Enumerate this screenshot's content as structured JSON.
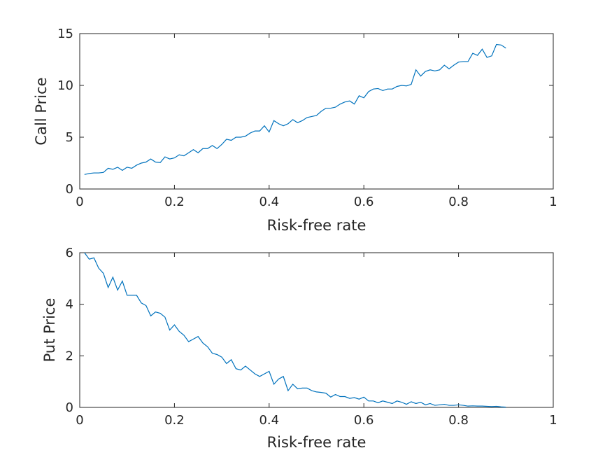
{
  "chart_data": [
    {
      "type": "line",
      "xlabel": "Risk-free rate",
      "ylabel": "Call Price",
      "xlim": [
        0,
        1
      ],
      "ylim": [
        0,
        15
      ],
      "xticks": [
        0,
        0.2,
        0.4,
        0.6,
        0.8,
        1
      ],
      "xtick_labels": [
        "0",
        "0.2",
        "0.4",
        "0.6",
        "0.8",
        "1"
      ],
      "yticks": [
        0,
        5,
        10,
        15
      ],
      "ytick_labels": [
        "0",
        "5",
        "10",
        "15"
      ],
      "grid": false,
      "line_color": "#0072bd",
      "series": [
        {
          "x": [
            0.01,
            0.02,
            0.03,
            0.04,
            0.05,
            0.06,
            0.07,
            0.08,
            0.09,
            0.1,
            0.11,
            0.12,
            0.13,
            0.14,
            0.15,
            0.16,
            0.17,
            0.18,
            0.19,
            0.2,
            0.21,
            0.22,
            0.23,
            0.24,
            0.25,
            0.26,
            0.27,
            0.28,
            0.29,
            0.3,
            0.31,
            0.32,
            0.33,
            0.34,
            0.35,
            0.36,
            0.37,
            0.38,
            0.39,
            0.4,
            0.41,
            0.42,
            0.43,
            0.44,
            0.45,
            0.46,
            0.47,
            0.48,
            0.49,
            0.5,
            0.51,
            0.52,
            0.53,
            0.54,
            0.55,
            0.56,
            0.57,
            0.58,
            0.59,
            0.6,
            0.61,
            0.62,
            0.63,
            0.64,
            0.65,
            0.66,
            0.67,
            0.68,
            0.69,
            0.7,
            0.71,
            0.72,
            0.73,
            0.74,
            0.75,
            0.76,
            0.77,
            0.78,
            0.79,
            0.8,
            0.81,
            0.82,
            0.83,
            0.84,
            0.85,
            0.86,
            0.87,
            0.88,
            0.89,
            0.9
          ],
          "values": [
            1.4,
            1.5,
            1.55,
            1.55,
            1.6,
            2.0,
            1.9,
            2.1,
            1.8,
            2.1,
            2.0,
            2.3,
            2.5,
            2.6,
            2.9,
            2.6,
            2.55,
            3.1,
            2.9,
            3.0,
            3.3,
            3.2,
            3.5,
            3.8,
            3.5,
            3.9,
            3.9,
            4.2,
            3.9,
            4.3,
            4.8,
            4.7,
            5.0,
            5.0,
            5.1,
            5.4,
            5.6,
            5.6,
            6.1,
            5.5,
            6.6,
            6.3,
            6.1,
            6.3,
            6.7,
            6.4,
            6.6,
            6.9,
            7.0,
            7.1,
            7.5,
            7.8,
            7.8,
            7.9,
            8.2,
            8.4,
            8.5,
            8.2,
            9.0,
            8.8,
            9.4,
            9.65,
            9.7,
            9.5,
            9.65,
            9.65,
            9.9,
            10.0,
            9.95,
            10.1,
            11.5,
            10.9,
            11.35,
            11.5,
            11.4,
            11.5,
            11.95,
            11.6,
            11.95,
            12.25,
            12.3,
            12.3,
            13.1,
            12.9,
            13.5,
            12.7,
            12.85,
            13.95,
            13.9,
            13.6
          ]
        }
      ]
    },
    {
      "type": "line",
      "xlabel": "Risk-free rate",
      "ylabel": "Put Price",
      "xlim": [
        0,
        1
      ],
      "ylim": [
        0,
        6
      ],
      "xticks": [
        0,
        0.2,
        0.4,
        0.6,
        0.8,
        1
      ],
      "xtick_labels": [
        "0",
        "0.2",
        "0.4",
        "0.6",
        "0.8",
        "1"
      ],
      "yticks": [
        0,
        2,
        4,
        6
      ],
      "ytick_labels": [
        "0",
        "2",
        "4",
        "6"
      ],
      "grid": false,
      "line_color": "#0072bd",
      "series": [
        {
          "x": [
            0.01,
            0.02,
            0.03,
            0.04,
            0.05,
            0.06,
            0.07,
            0.08,
            0.09,
            0.1,
            0.11,
            0.12,
            0.13,
            0.14,
            0.15,
            0.16,
            0.17,
            0.18,
            0.19,
            0.2,
            0.21,
            0.22,
            0.23,
            0.24,
            0.25,
            0.26,
            0.27,
            0.28,
            0.29,
            0.3,
            0.31,
            0.32,
            0.33,
            0.34,
            0.35,
            0.36,
            0.37,
            0.38,
            0.39,
            0.4,
            0.41,
            0.42,
            0.43,
            0.44,
            0.45,
            0.46,
            0.47,
            0.48,
            0.49,
            0.5,
            0.51,
            0.52,
            0.53,
            0.54,
            0.55,
            0.56,
            0.57,
            0.58,
            0.59,
            0.6,
            0.61,
            0.62,
            0.63,
            0.64,
            0.65,
            0.66,
            0.67,
            0.68,
            0.69,
            0.7,
            0.71,
            0.72,
            0.73,
            0.74,
            0.75,
            0.76,
            0.77,
            0.78,
            0.79,
            0.8,
            0.81,
            0.82,
            0.83,
            0.84,
            0.85,
            0.86,
            0.87,
            0.88,
            0.89,
            0.9
          ],
          "values": [
            6.0,
            5.75,
            5.8,
            5.4,
            5.2,
            4.65,
            5.05,
            4.55,
            4.9,
            4.35,
            4.35,
            4.35,
            4.05,
            3.95,
            3.55,
            3.7,
            3.65,
            3.5,
            3.0,
            3.2,
            2.95,
            2.8,
            2.55,
            2.65,
            2.75,
            2.5,
            2.35,
            2.1,
            2.05,
            1.95,
            1.7,
            1.85,
            1.5,
            1.45,
            1.6,
            1.45,
            1.3,
            1.2,
            1.3,
            1.4,
            0.9,
            1.1,
            1.2,
            0.65,
            0.9,
            0.72,
            0.75,
            0.75,
            0.65,
            0.6,
            0.58,
            0.55,
            0.4,
            0.5,
            0.42,
            0.42,
            0.35,
            0.38,
            0.32,
            0.4,
            0.25,
            0.25,
            0.18,
            0.25,
            0.2,
            0.15,
            0.25,
            0.2,
            0.12,
            0.22,
            0.15,
            0.2,
            0.1,
            0.15,
            0.08,
            0.1,
            0.12,
            0.08,
            0.08,
            0.1,
            0.08,
            0.05,
            0.06,
            0.05,
            0.05,
            0.04,
            0.03,
            0.04,
            0.02,
            0.01
          ]
        }
      ]
    }
  ]
}
